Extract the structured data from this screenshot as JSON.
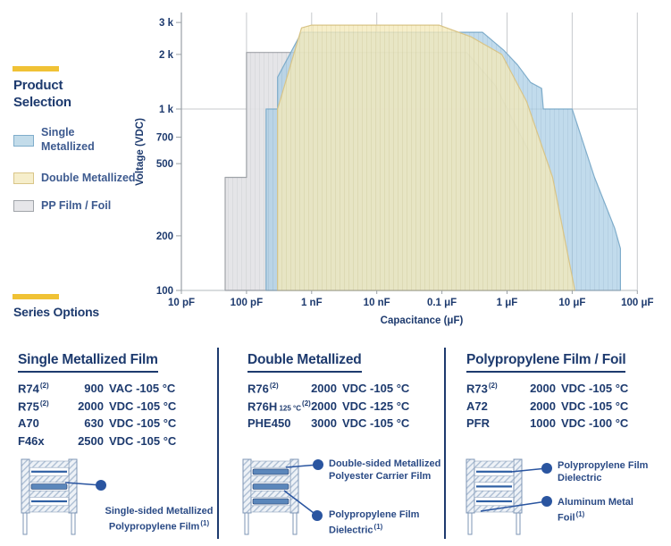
{
  "colors": {
    "navy": "#1d3a6e",
    "accent": "#f0c235",
    "grid": "#c7cacd",
    "axis": "#9aa0a6",
    "single_metallized_fill": "#a9cde4",
    "single_metallized_edge": "#7fadcb",
    "double_metallized_fill": "#f3e9ba",
    "double_metallized_edge": "#d9c588",
    "pp_film_foil_fill": "#e3e3e6",
    "pp_film_foil_edge": "#a0a4a9",
    "callout_dot": "#2a55a0"
  },
  "product_selection": {
    "title_lines": [
      "Product",
      "Selection"
    ],
    "items": [
      {
        "key": "single-metallized",
        "label_lines": [
          "Single",
          "Metallized"
        ],
        "fill": "#c3dcea",
        "edge": "#7fadcb"
      },
      {
        "key": "double-metallized",
        "label_lines": [
          "Double Metallized"
        ],
        "fill": "#f6eecb",
        "edge": "#d9c588"
      },
      {
        "key": "pp-film-foil",
        "label_lines": [
          "PP Film / Foil"
        ],
        "fill": "#e6e6e9",
        "edge": "#a0a4a9"
      }
    ]
  },
  "chart_data": {
    "type": "area",
    "title": "",
    "xlabel": "Capacitance (μF)",
    "ylabel": "Voltage (VDC)",
    "x_scale": "log",
    "y_scale": "log",
    "x_range_pf": [
      10,
      100000000
    ],
    "y_range_v": [
      100,
      3500
    ],
    "x_ticks": [
      {
        "label": "10 pF",
        "pf": 10
      },
      {
        "label": "100 pF",
        "pf": 100
      },
      {
        "label": "1 nF",
        "pf": 1000
      },
      {
        "label": "10 nF",
        "pf": 10000
      },
      {
        "label": "0.1 μF",
        "pf": 100000
      },
      {
        "label": "1 μF",
        "pf": 1000000
      },
      {
        "label": "10 μF",
        "pf": 10000000
      },
      {
        "label": "100 μF",
        "pf": 100000000
      }
    ],
    "y_ticks": [
      {
        "label": "100",
        "v": 100
      },
      {
        "label": "200",
        "v": 200
      },
      {
        "label": "500",
        "v": 500
      },
      {
        "label": "700",
        "v": 700
      },
      {
        "label": "1 k",
        "v": 1000
      },
      {
        "label": "2 k",
        "v": 2000
      },
      {
        "label": "3 k",
        "v": 3000
      }
    ],
    "grid": {
      "vertical_major": true,
      "horizontal_lines_v": [
        1000
      ]
    },
    "legend_position": "left",
    "series": [
      {
        "name": "PP Film / Foil",
        "color_key": "pp_film_foil",
        "points_pf_v": [
          [
            47,
            100
          ],
          [
            47,
            420
          ],
          [
            100,
            420
          ],
          [
            100,
            2050
          ],
          [
            240000,
            2050
          ],
          [
            660000,
            1350
          ],
          [
            1450000,
            770
          ],
          [
            2200000,
            580
          ],
          [
            2200000,
            100
          ]
        ]
      },
      {
        "name": "Single Metallized",
        "color_key": "single_metallized",
        "points_pf_v": [
          [
            200,
            100
          ],
          [
            200,
            1000
          ],
          [
            300,
            1000
          ],
          [
            300,
            1500
          ],
          [
            700,
            2650
          ],
          [
            420000,
            2650
          ],
          [
            900000,
            2100
          ],
          [
            1450000,
            1750
          ],
          [
            2300000,
            1400
          ],
          [
            3400000,
            1300
          ],
          [
            3600000,
            1000
          ],
          [
            10000000,
            1000
          ],
          [
            22000000,
            420
          ],
          [
            45000000,
            220
          ],
          [
            55000000,
            170
          ],
          [
            55000000,
            100
          ]
        ]
      },
      {
        "name": "Double Metallized",
        "color_key": "double_metallized",
        "points_pf_v": [
          [
            300,
            100
          ],
          [
            300,
            1000
          ],
          [
            700,
            2800
          ],
          [
            1000,
            2900
          ],
          [
            90000,
            2900
          ],
          [
            280000,
            2500
          ],
          [
            830000,
            2000
          ],
          [
            2000000,
            1100
          ],
          [
            5000000,
            420
          ],
          [
            11000000,
            100
          ]
        ]
      }
    ]
  },
  "series_options": {
    "title": "Series Options",
    "columns": [
      {
        "title": "Single Metallized Film",
        "rows": [
          {
            "name": "R74",
            "sup": "(2)",
            "num": "900",
            "rest": "VAC -105 °C"
          },
          {
            "name": "R75",
            "sup": "(2)",
            "num": "2000",
            "rest": "VDC -105 °C"
          },
          {
            "name": "A70",
            "sup": "",
            "num": "630",
            "rest": "VDC -105 °C"
          },
          {
            "name": "F46x",
            "sup": "",
            "num": "2500",
            "rest": "VDC -105 °C"
          }
        ],
        "callouts": [
          {
            "lines": [
              "Single-sided Metallized",
              "Polypropylene Film"
            ],
            "sup": "(1)"
          }
        ]
      },
      {
        "title": "Double Metallized",
        "rows": [
          {
            "name": "R76",
            "sup": "(2)",
            "num": "2000",
            "rest": "VDC -105 °C"
          },
          {
            "name": "R76H",
            "name_small": "125 °C",
            "sup": "(2)",
            "num": "2000",
            "rest": "VDC -125 °C"
          },
          {
            "name": "PHE450",
            "sup": "",
            "num": "3000",
            "rest": "VDC -105 °C"
          }
        ],
        "callouts": [
          {
            "lines": [
              "Double-sided Metallized",
              "Polyester Carrier Film"
            ],
            "sup": ""
          },
          {
            "lines": [
              "Polypropylene Film",
              "Dielectric"
            ],
            "sup": "(1)"
          }
        ]
      },
      {
        "title": "Polypropylene Film / Foil",
        "rows": [
          {
            "name": "R73",
            "sup": "(2)",
            "num": "2000",
            "rest": "VDC -105 °C"
          },
          {
            "name": "A72",
            "sup": "",
            "num": "2000",
            "rest": "VDC -105 °C"
          },
          {
            "name": "PFR",
            "sup": "",
            "num": "1000",
            "rest": "VDC -100 °C"
          }
        ],
        "callouts": [
          {
            "lines": [
              "Polypropylene Film",
              "Dielectric"
            ],
            "sup": ""
          },
          {
            "lines": [
              "Aluminum Metal",
              "Foil"
            ],
            "sup": "(1)"
          }
        ]
      }
    ]
  }
}
